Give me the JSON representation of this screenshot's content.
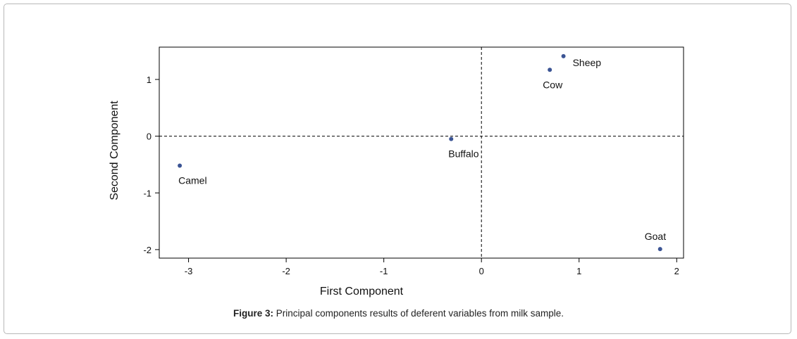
{
  "chart_data": {
    "type": "scatter",
    "title": "",
    "xlabel": "First Component",
    "ylabel": "Second Component",
    "xlim": [
      -3.3,
      2.07
    ],
    "ylim": [
      -2.15,
      1.57
    ],
    "xticks": [
      -3,
      -2,
      -1,
      0,
      1,
      2
    ],
    "yticks": [
      -2,
      -1,
      0,
      1
    ],
    "reference_lines": {
      "x": 0,
      "y": 0,
      "style": "dashed"
    },
    "grid": false,
    "point_color": "#3b5494",
    "points": [
      {
        "label": "Camel",
        "x": -3.09,
        "y": -0.52
      },
      {
        "label": "Buffalo",
        "x": -0.31,
        "y": -0.05
      },
      {
        "label": "Cow",
        "x": 0.7,
        "y": 1.17
      },
      {
        "label": "Sheep",
        "x": 0.84,
        "y": 1.41
      },
      {
        "label": "Goat",
        "x": 1.83,
        "y": -1.99
      }
    ]
  },
  "caption": {
    "label": "Figure 3:",
    "text": " Principal components results of deferent variables from milk sample."
  }
}
